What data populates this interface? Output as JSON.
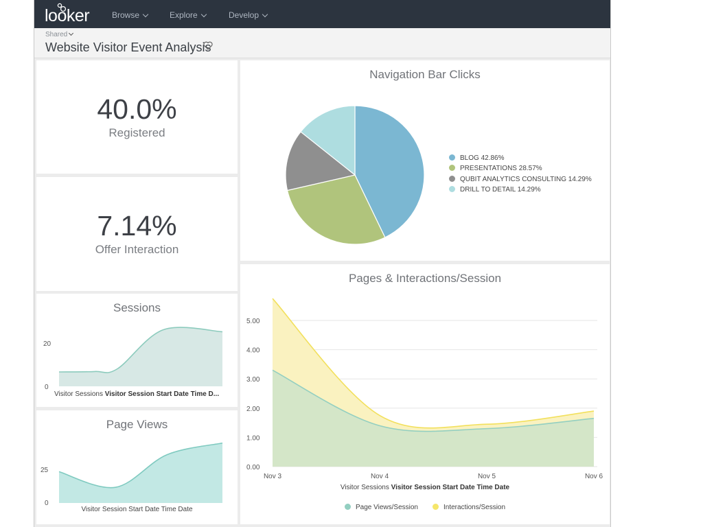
{
  "app": {
    "logo_text": "looker"
  },
  "nav": [
    {
      "label": "Browse"
    },
    {
      "label": "Explore"
    },
    {
      "label": "Develop"
    }
  ],
  "header": {
    "breadcrumb": "Shared",
    "title": "Website Visitor Event Analysis"
  },
  "kpis": {
    "registered": {
      "value": "40.0%",
      "label": "Registered"
    },
    "offer": {
      "value": "7.14%",
      "label": "Offer Interaction"
    }
  },
  "sessions_tile": {
    "title": "Sessions",
    "x_caption_dim": "Visitor Sessions",
    "x_caption_field": "Visitor Session Start Date Time D...",
    "y_ticks": [
      "20",
      "0"
    ]
  },
  "pageviews_tile": {
    "title": "Page Views",
    "x_caption": "Visitor Session Start Date Time Date",
    "y_ticks": [
      "25",
      "0"
    ]
  },
  "pie_tile": {
    "title": "Navigation Bar Clicks",
    "legend": [
      {
        "label": "BLOG 42.86%"
      },
      {
        "label": "PRESENTATIONS 28.57%"
      },
      {
        "label": "QUBIT ANALYTICS CONSULTING 14.29%"
      },
      {
        "label": "DRILL TO DETAIL 14.29%"
      }
    ]
  },
  "area_tile": {
    "title": "Pages & Interactions/Session",
    "x_caption_dim": "Visitor Sessions",
    "x_caption_field": "Visitor Session Start Date Time Date",
    "legend": [
      {
        "label": "Page Views/Session"
      },
      {
        "label": "Interactions/Session"
      }
    ]
  },
  "colors": {
    "blue": "#7bb7d2",
    "green": "#b0c47c",
    "gray": "#8f8f8f",
    "lightblue": "#aedde0",
    "teal": "#7fc2b3",
    "yellow": "#f5e66a",
    "areaGreen": "#d4e6c8",
    "areaYellow": "#faf2c0"
  },
  "chart_data": [
    {
      "type": "pie",
      "title": "Navigation Bar Clicks",
      "categories": [
        "BLOG",
        "PRESENTATIONS",
        "QUBIT ANALYTICS CONSULTING",
        "DRILL TO DETAIL"
      ],
      "values": [
        42.86,
        28.57,
        14.29,
        14.29
      ],
      "colors": [
        "#7bb7d2",
        "#b0c47c",
        "#8f8f8f",
        "#aedde0"
      ]
    },
    {
      "type": "area",
      "title": "Pages & Interactions/Session",
      "categories": [
        "Nov 3",
        "Nov 4",
        "Nov 5",
        "Nov 6"
      ],
      "series": [
        {
          "name": "Page Views/Session",
          "values": [
            3.3,
            1.4,
            1.3,
            1.65
          ]
        },
        {
          "name": "Interactions/Session",
          "values": [
            5.75,
            1.75,
            1.45,
            1.9
          ]
        }
      ],
      "y_ticks": [
        "5.00",
        "4.00",
        "3.00",
        "2.00",
        "1.00",
        "0.00"
      ],
      "ylim": [
        0,
        5.75
      ],
      "xlabel": "Visitor Sessions Visitor Session Start Date Time Date"
    },
    {
      "type": "area",
      "title": "Sessions",
      "values": [
        7,
        7.2,
        8.5,
        27.5,
        26.5
      ],
      "ylim": [
        0,
        30
      ],
      "y_ticks": [
        0,
        20
      ]
    },
    {
      "type": "area",
      "title": "Page Views",
      "values": [
        24,
        12,
        37,
        46
      ],
      "ylim": [
        0,
        50
      ],
      "y_ticks": [
        0,
        25
      ]
    }
  ]
}
